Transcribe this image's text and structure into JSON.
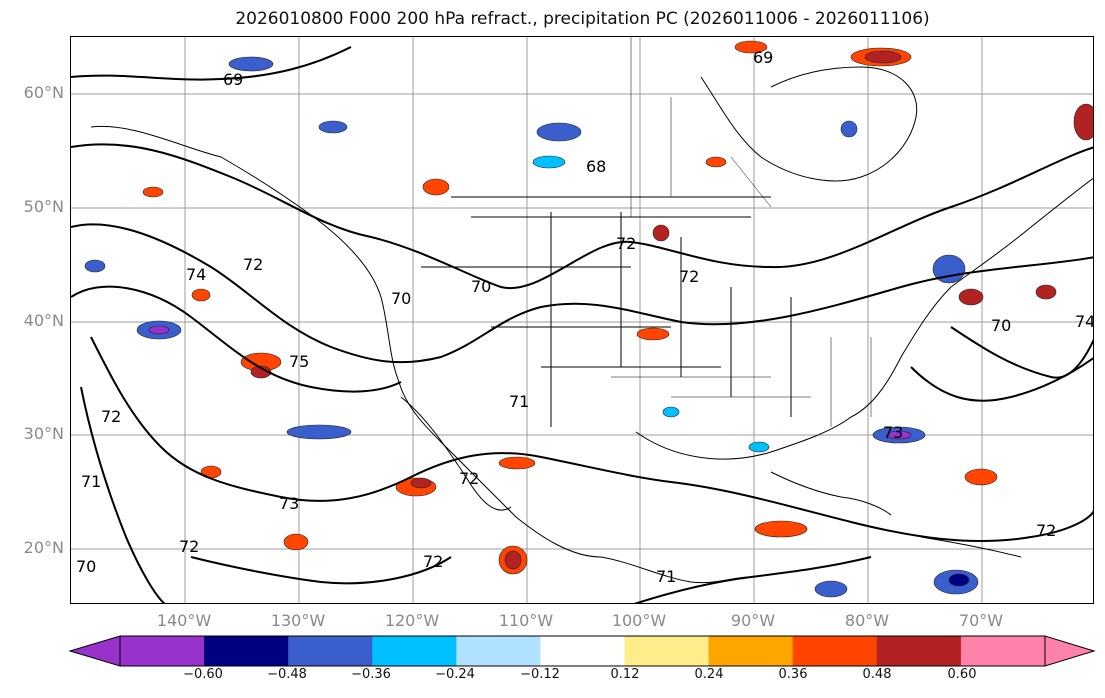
{
  "title": "2026010800 F000 200 hPa refract., precipitation PC (2026011006 - 2026011106)",
  "lat_labels": [
    "60°N",
    "50°N",
    "40°N",
    "30°N",
    "20°N"
  ],
  "lon_labels": [
    "140°W",
    "130°W",
    "120°W",
    "110°W",
    "100°W",
    "90°W",
    "80°W",
    "70°W"
  ],
  "contour_labels": [
    "69",
    "69",
    "68",
    "72",
    "74",
    "72",
    "70",
    "70",
    "75",
    "72",
    "71",
    "73",
    "72",
    "72",
    "71",
    "73",
    "72",
    "70",
    "71",
    "72",
    "72",
    "70",
    "74"
  ],
  "colorbar": {
    "ticks": [
      "−0.60",
      "−0.48",
      "−0.36",
      "−0.24",
      "−0.12",
      "0.12",
      "0.24",
      "0.36",
      "0.48",
      "0.60"
    ],
    "colors": [
      "#9932cc",
      "#000080",
      "#3a5fcd",
      "#00bfff",
      "#b0e2ff",
      "#ffffff",
      "#ffec8b",
      "#ffa500",
      "#ff4500",
      "#b22222",
      "#ff82ab"
    ]
  }
}
